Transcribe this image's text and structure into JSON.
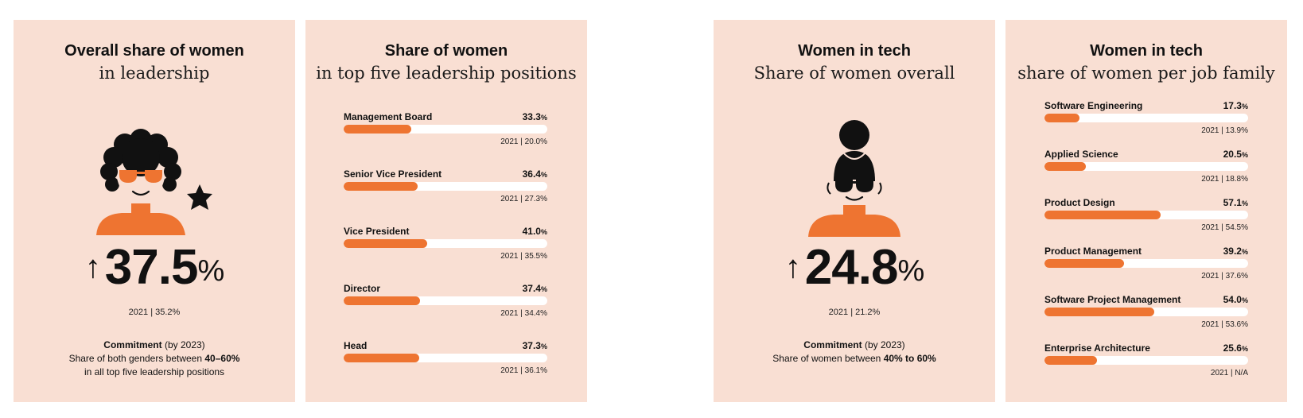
{
  "colors": {
    "panel_bg": "#f9dfd3",
    "accent": "#ee7431",
    "track": "#ffffff",
    "ink": "#111111"
  },
  "chart_data": [
    {
      "type": "kpi",
      "title": "Overall share of women",
      "subtitle": "in leadership",
      "value_display": "37.5",
      "value_unit": "%",
      "trend": "up",
      "trend_symbol": "↑",
      "previous": "2021 | 35.2%",
      "commitment": {
        "heading": "Commitment",
        "by": "(by 2023)",
        "line1_pre": "Share of both genders between ",
        "line1_bold": "40–60%",
        "line2": "in all top five leadership positions"
      }
    },
    {
      "type": "bar",
      "orientation": "horizontal",
      "title": "Share of women",
      "subtitle": "in top five leadership positions",
      "unit": "%",
      "xlim": [
        0,
        100
      ],
      "categories": [
        "Management Board",
        "Senior Vice President",
        "Vice President",
        "Director",
        "Head"
      ],
      "values": [
        33.3,
        36.4,
        41.0,
        37.4,
        37.3
      ],
      "value_labels": [
        "33.3",
        "36.4",
        "41.0",
        "37.4",
        "37.3"
      ],
      "previous": [
        "2021 | 20.0%",
        "2021 | 27.3%",
        "2021 | 35.5%",
        "2021 | 34.4%",
        "2021 | 36.1%"
      ]
    },
    {
      "type": "kpi",
      "title": "Women in tech",
      "subtitle": "Share of women overall",
      "value_display": "24.8",
      "value_unit": "%",
      "trend": "up",
      "trend_symbol": "↑",
      "previous": "2021 | 21.2%",
      "commitment": {
        "heading": "Commitment",
        "by": "(by 2023)",
        "line1_pre": "Share of women between ",
        "line1_bold": "40% to 60%"
      }
    },
    {
      "type": "bar",
      "orientation": "horizontal",
      "title": "Women in tech",
      "subtitle": "share of women per job family",
      "unit": "%",
      "xlim": [
        0,
        100
      ],
      "categories": [
        "Software Engineering",
        "Applied Science",
        "Product Design",
        "Product Management",
        "Software Project Management",
        "Enterprise Architecture"
      ],
      "values": [
        17.3,
        20.5,
        57.1,
        39.2,
        54.0,
        25.6
      ],
      "value_labels": [
        "17.3",
        "20.5",
        "57.1",
        "39.2",
        "54.0",
        "25.6"
      ],
      "previous": [
        "2021 | 13.9%",
        "2021 | 18.8%",
        "2021 | 54.5%",
        "2021 | 37.6%",
        "2021 | 53.6%",
        "2021 | N/A"
      ]
    }
  ]
}
